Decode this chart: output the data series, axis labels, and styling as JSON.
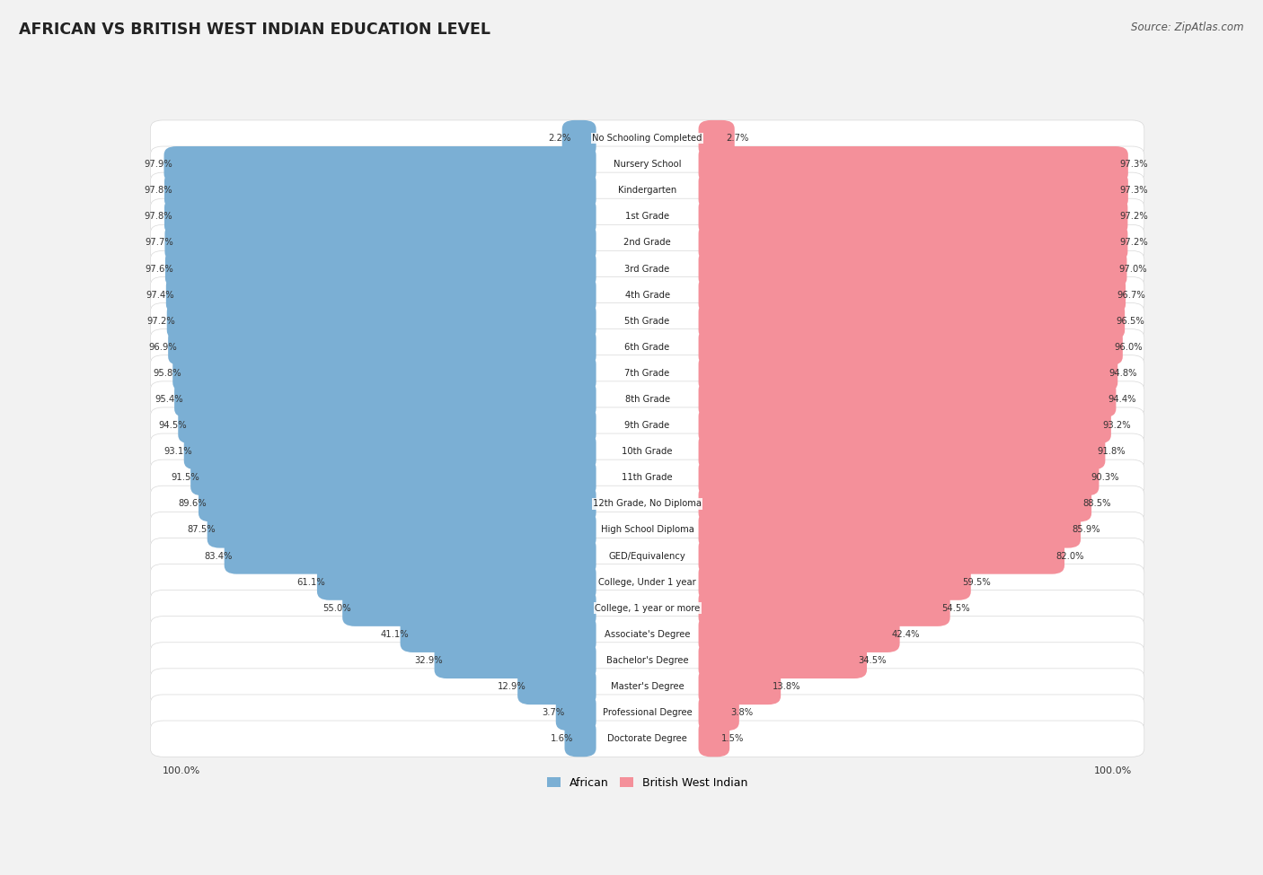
{
  "title": "AFRICAN VS BRITISH WEST INDIAN EDUCATION LEVEL",
  "source": "Source: ZipAtlas.com",
  "categories": [
    "No Schooling Completed",
    "Nursery School",
    "Kindergarten",
    "1st Grade",
    "2nd Grade",
    "3rd Grade",
    "4th Grade",
    "5th Grade",
    "6th Grade",
    "7th Grade",
    "8th Grade",
    "9th Grade",
    "10th Grade",
    "11th Grade",
    "12th Grade, No Diploma",
    "High School Diploma",
    "GED/Equivalency",
    "College, Under 1 year",
    "College, 1 year or more",
    "Associate's Degree",
    "Bachelor's Degree",
    "Master's Degree",
    "Professional Degree",
    "Doctorate Degree"
  ],
  "african": [
    2.2,
    97.9,
    97.8,
    97.8,
    97.7,
    97.6,
    97.4,
    97.2,
    96.9,
    95.8,
    95.4,
    94.5,
    93.1,
    91.5,
    89.6,
    87.5,
    83.4,
    61.1,
    55.0,
    41.1,
    32.9,
    12.9,
    3.7,
    1.6
  ],
  "bwi": [
    2.7,
    97.3,
    97.3,
    97.2,
    97.2,
    97.0,
    96.7,
    96.5,
    96.0,
    94.8,
    94.4,
    93.2,
    91.8,
    90.3,
    88.5,
    85.9,
    82.0,
    59.5,
    54.5,
    42.4,
    34.5,
    13.8,
    3.8,
    1.5
  ],
  "african_color": "#7bafd4",
  "bwi_color": "#f4909090",
  "bg_color": "#f2f2f2",
  "bar_bg_color": "#ffffff",
  "row_edge_color": "#d8d8d8"
}
